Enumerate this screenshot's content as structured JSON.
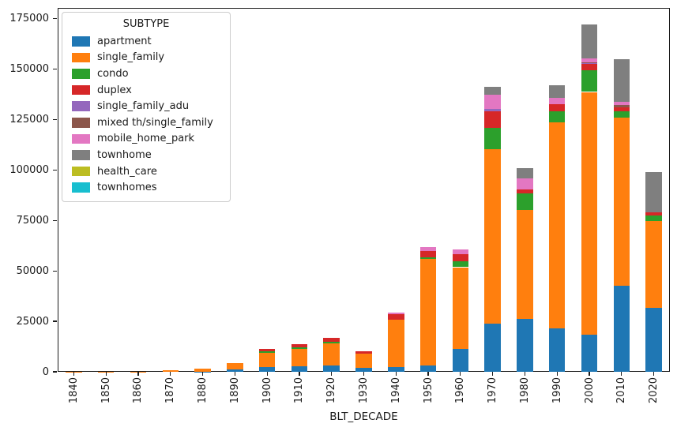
{
  "axes": {
    "xlabel": "BLT_DECADE",
    "y_tick_labels": [
      "0",
      "25000",
      "50000",
      "75000",
      "100000",
      "125000",
      "150000",
      "175000"
    ]
  },
  "legend": {
    "title": "SUBTYPE"
  },
  "chart_data": {
    "type": "bar",
    "stacked": true,
    "title": "",
    "xlabel": "BLT_DECADE",
    "ylabel": "",
    "grid": false,
    "legend_title": "SUBTYPE",
    "legend_position": "upper left",
    "ylim": [
      0,
      175000
    ],
    "yticks": [
      0,
      25000,
      50000,
      75000,
      100000,
      125000,
      150000,
      175000
    ],
    "categories": [
      "1840",
      "1850",
      "1860",
      "1870",
      "1880",
      "1890",
      "1900",
      "1910",
      "1920",
      "1930",
      "1940",
      "1950",
      "1960",
      "1970",
      "1980",
      "1990",
      "2000",
      "2010",
      "2020"
    ],
    "series": [
      {
        "name": "apartment",
        "color": "#1f77b4",
        "values": [
          0,
          0,
          0,
          0,
          100,
          1000,
          2300,
          2700,
          3200,
          2000,
          2300,
          3300,
          11500,
          23900,
          26200,
          21500,
          18400,
          42700,
          31700
        ]
      },
      {
        "name": "single_family",
        "color": "#ff7f0e",
        "values": [
          50,
          100,
          150,
          600,
          1300,
          3400,
          7200,
          8500,
          10700,
          6900,
          23500,
          52500,
          40300,
          86300,
          54100,
          102000,
          120200,
          83000,
          43000
        ]
      },
      {
        "name": "condo",
        "color": "#2ca02c",
        "values": [
          0,
          0,
          0,
          0,
          0,
          0,
          500,
          900,
          900,
          0,
          0,
          1000,
          2900,
          10600,
          8100,
          5600,
          10700,
          3500,
          2600
        ]
      },
      {
        "name": "duplex",
        "color": "#d62728",
        "values": [
          0,
          0,
          0,
          0,
          0,
          0,
          1500,
          1500,
          1900,
          1300,
          2600,
          3000,
          3600,
          8100,
          2000,
          3300,
          3100,
          1800,
          1500
        ]
      },
      {
        "name": "single_family_adu",
        "color": "#9467bd",
        "values": [
          0,
          0,
          0,
          0,
          0,
          0,
          0,
          0,
          0,
          0,
          0,
          0,
          0,
          1300,
          0,
          0,
          500,
          0,
          0
        ]
      },
      {
        "name": "mixed th/single_family",
        "color": "#8c564b",
        "values": [
          0,
          0,
          0,
          0,
          0,
          0,
          0,
          0,
          0,
          0,
          0,
          0,
          0,
          0,
          0,
          0,
          400,
          1300,
          0
        ]
      },
      {
        "name": "mobile_home_park",
        "color": "#e377c2",
        "values": [
          0,
          0,
          0,
          0,
          0,
          0,
          0,
          0,
          0,
          0,
          900,
          1800,
          2200,
          6900,
          5500,
          3200,
          1900,
          1300,
          0
        ]
      },
      {
        "name": "townhome",
        "color": "#7f7f7f",
        "values": [
          0,
          0,
          0,
          0,
          0,
          0,
          0,
          0,
          0,
          0,
          0,
          0,
          0,
          4200,
          5000,
          6500,
          16900,
          21200,
          20200
        ]
      },
      {
        "name": "health_care",
        "color": "#bcbd22",
        "values": [
          0,
          0,
          0,
          0,
          0,
          0,
          0,
          0,
          0,
          0,
          0,
          0,
          0,
          0,
          0,
          0,
          0,
          0,
          0
        ]
      },
      {
        "name": "townhomes",
        "color": "#17becf",
        "values": [
          0,
          0,
          0,
          0,
          0,
          0,
          0,
          0,
          0,
          0,
          0,
          0,
          0,
          0,
          0,
          0,
          0,
          0,
          0
        ]
      }
    ]
  }
}
